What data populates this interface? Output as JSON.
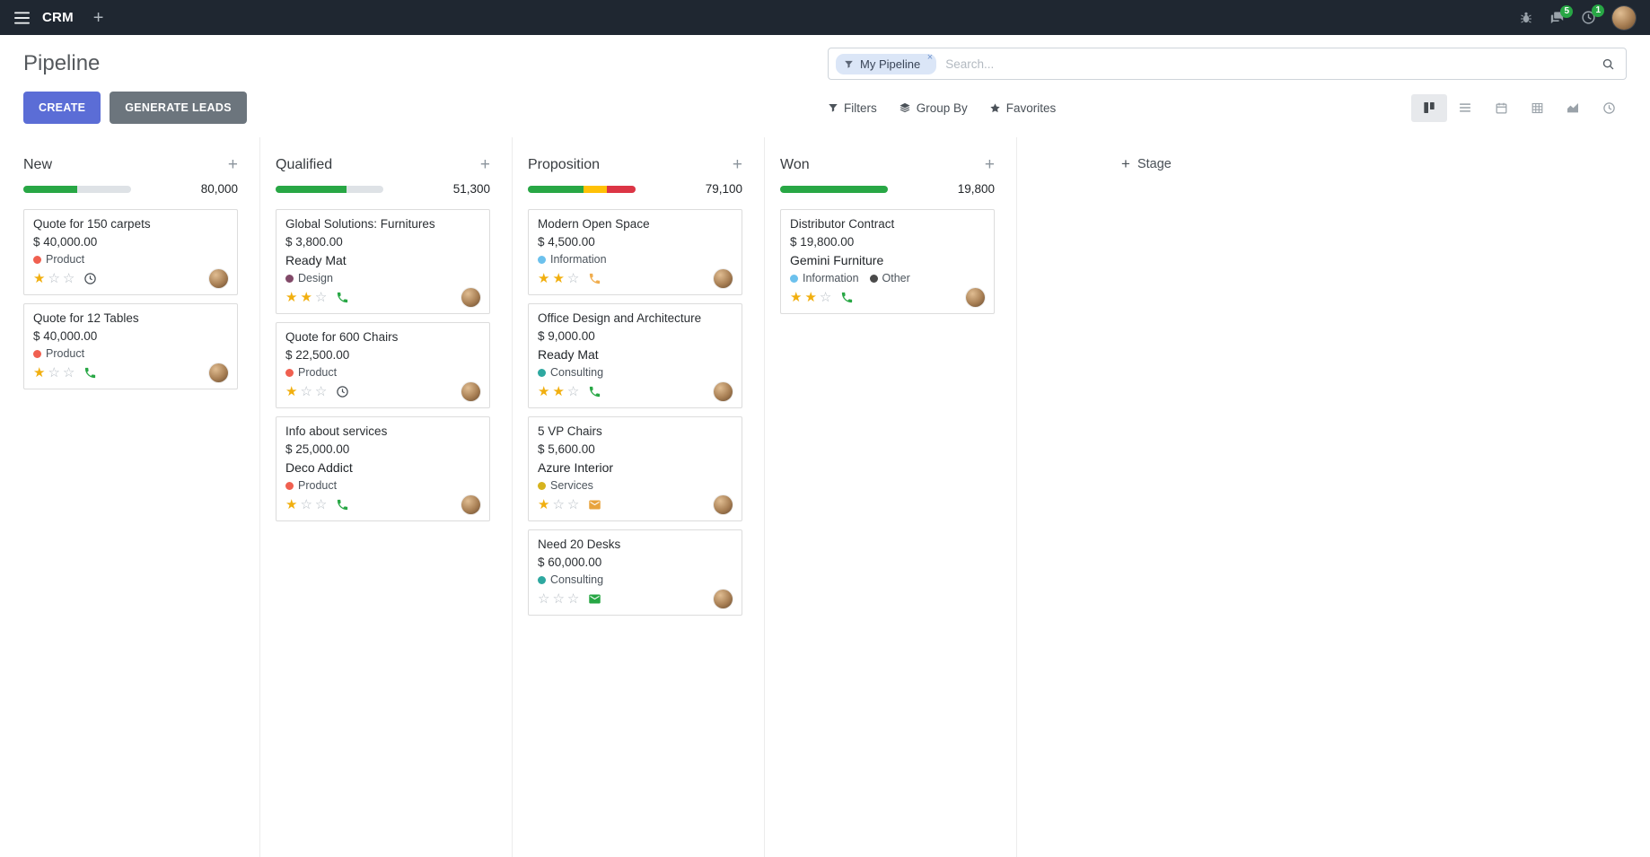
{
  "navbar": {
    "brand": "CRM",
    "messages_badge": "5",
    "activities_badge": "1"
  },
  "control_panel": {
    "title": "Pipeline",
    "create_label": "CREATE",
    "generate_leads_label": "GENERATE LEADS",
    "filters_label": "Filters",
    "group_by_label": "Group By",
    "favorites_label": "Favorites",
    "search": {
      "facet_label": "My Pipeline",
      "placeholder": "Search..."
    }
  },
  "colors": {
    "primary_button": "#5b6dd6",
    "badge_green": "#28a745"
  },
  "board": {
    "add_stage_label": "Stage",
    "columns": [
      {
        "name": "New",
        "total": "80,000",
        "progress": [
          {
            "color": "#28a745",
            "pct": 50
          }
        ],
        "cards": [
          {
            "title": "Quote for 150 carpets",
            "amount": "$ 40,000.00",
            "tags": [
              {
                "label": "Product",
                "color": "#f06050"
              }
            ],
            "stars": 1,
            "activity": {
              "icon": "clock-icon",
              "color": "#495057"
            }
          },
          {
            "title": "Quote for 12 Tables",
            "amount": "$ 40,000.00",
            "tags": [
              {
                "label": "Product",
                "color": "#f06050"
              }
            ],
            "stars": 1,
            "activity": {
              "icon": "phone-icon",
              "color": "#28a745"
            }
          }
        ]
      },
      {
        "name": "Qualified",
        "total": "51,300",
        "progress": [
          {
            "color": "#28a745",
            "pct": 66
          }
        ],
        "cards": [
          {
            "title": "Global Solutions: Furnitures",
            "amount": "$ 3,800.00",
            "partner": "Ready Mat",
            "tags": [
              {
                "label": "Design",
                "color": "#814968"
              }
            ],
            "stars": 2,
            "activity": {
              "icon": "phone-icon",
              "color": "#28a745"
            }
          },
          {
            "title": "Quote for 600 Chairs",
            "amount": "$ 22,500.00",
            "tags": [
              {
                "label": "Product",
                "color": "#f06050"
              }
            ],
            "stars": 1,
            "activity": {
              "icon": "clock-icon",
              "color": "#495057"
            }
          },
          {
            "title": "Info about services",
            "amount": "$ 25,000.00",
            "partner": "Deco Addict",
            "tags": [
              {
                "label": "Product",
                "color": "#f06050"
              }
            ],
            "stars": 1,
            "activity": {
              "icon": "phone-icon",
              "color": "#28a745"
            }
          }
        ]
      },
      {
        "name": "Proposition",
        "total": "79,100",
        "progress": [
          {
            "color": "#28a745",
            "pct": 52
          },
          {
            "color": "#ffc107",
            "pct": 21
          },
          {
            "color": "#dc3545",
            "pct": 27
          }
        ],
        "cards": [
          {
            "title": "Modern Open Space",
            "amount": "$ 4,500.00",
            "tags": [
              {
                "label": "Information",
                "color": "#6cc1ed"
              }
            ],
            "stars": 2,
            "activity": {
              "icon": "phone-icon",
              "color": "#f0ad4e"
            }
          },
          {
            "title": "Office Design and Architecture",
            "amount": "$ 9,000.00",
            "partner": "Ready Mat",
            "tags": [
              {
                "label": "Consulting",
                "color": "#2ea8a0"
              }
            ],
            "stars": 2,
            "activity": {
              "icon": "phone-icon",
              "color": "#28a745"
            }
          },
          {
            "title": "5 VP Chairs",
            "amount": "$ 5,600.00",
            "partner": "Azure Interior",
            "tags": [
              {
                "label": "Services",
                "color": "#d6b31e"
              }
            ],
            "stars": 1,
            "activity": {
              "icon": "envelope-icon",
              "color": "#e8a33d"
            }
          },
          {
            "title": "Need 20 Desks",
            "amount": "$ 60,000.00",
            "tags": [
              {
                "label": "Consulting",
                "color": "#2ea8a0"
              }
            ],
            "stars": 0,
            "activity": {
              "icon": "envelope-icon",
              "color": "#28a745"
            }
          }
        ]
      },
      {
        "name": "Won",
        "total": "19,800",
        "progress": [
          {
            "color": "#28a745",
            "pct": 100
          }
        ],
        "cards": [
          {
            "title": "Distributor Contract",
            "amount": "$ 19,800.00",
            "partner": "Gemini Furniture",
            "tags": [
              {
                "label": "Information",
                "color": "#6cc1ed"
              },
              {
                "label": "Other",
                "color": "#4a4a4a"
              }
            ],
            "stars": 2,
            "activity": {
              "icon": "phone-icon",
              "color": "#28a745"
            }
          }
        ]
      }
    ]
  }
}
